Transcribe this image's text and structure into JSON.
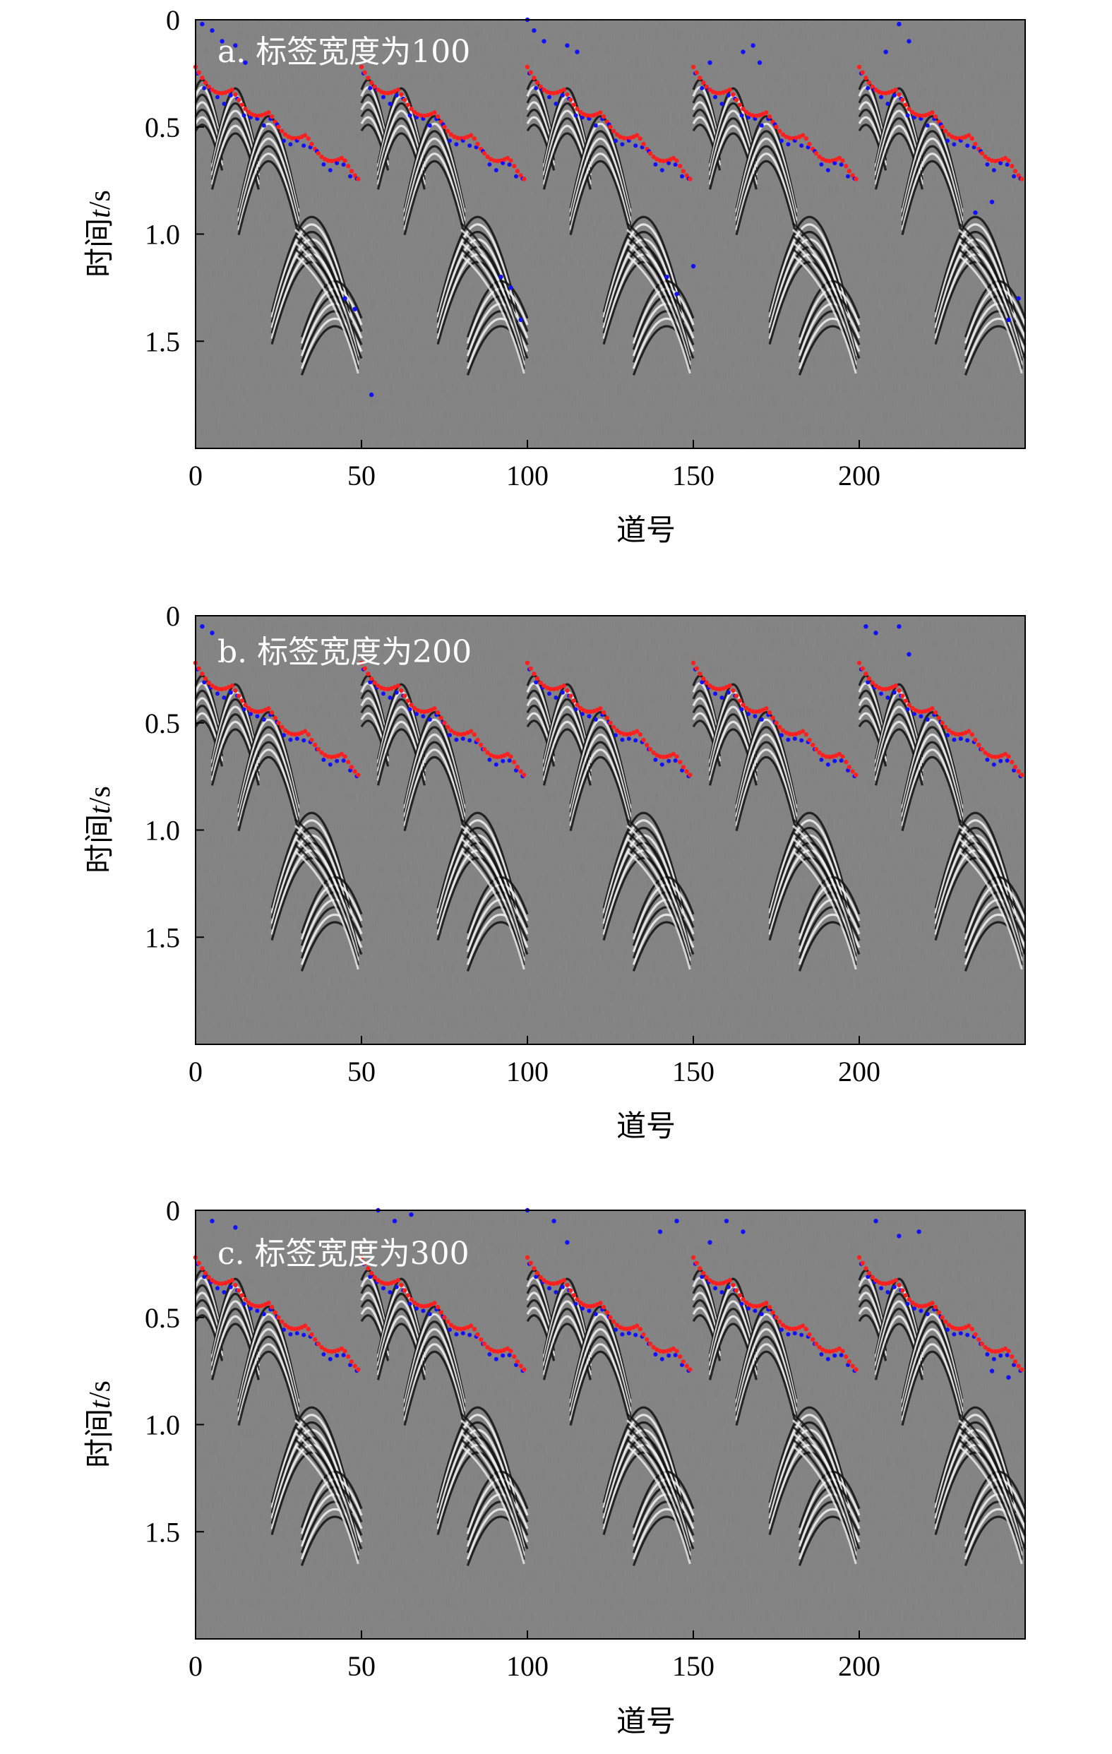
{
  "colors": {
    "background_gray": "#808080",
    "auto_picks": "#ff2020",
    "model_picks": "#1010ff"
  },
  "chart_data": [
    {
      "type": "scatter",
      "label": "a. 标签宽度为100",
      "xlabel": "道号",
      "ylabel_pre": "时间",
      "ylabel_var": "t",
      "ylabel_post": "/s",
      "xlim": [
        0,
        250
      ],
      "ylim": [
        2.0,
        0
      ],
      "xticks": [
        0,
        50,
        100,
        150,
        200
      ],
      "yticks": [
        0,
        0.5,
        1.0,
        1.5
      ],
      "ytick_labels": [
        "0",
        "0.5",
        "1.0",
        "1.5"
      ],
      "y_inverted": true,
      "series": [
        {
          "key": "red",
          "x_ranges": [
            [
              0,
              50
            ],
            [
              50,
              100
            ],
            [
              100,
              150
            ],
            [
              150,
              200
            ],
            [
              200,
              250
            ]
          ],
          "y_start": 0.25,
          "y_end": 0.75
        },
        {
          "key": "blue",
          "scatter_x": [
            2,
            5,
            8,
            12,
            15,
            45,
            48,
            53,
            92,
            95,
            98,
            100,
            102,
            105,
            112,
            115,
            142,
            145,
            150,
            155,
            165,
            168,
            170,
            208,
            212,
            215,
            235,
            240,
            245,
            248
          ],
          "scatter_y": [
            0.02,
            0.05,
            0.1,
            0.12,
            0.2,
            1.3,
            1.35,
            1.75,
            1.2,
            1.25,
            1.4,
            0.0,
            0.05,
            0.1,
            0.12,
            0.15,
            1.2,
            1.28,
            1.15,
            0.2,
            0.15,
            0.12,
            0.2,
            0.15,
            0.02,
            0.1,
            0.9,
            0.85,
            1.4,
            1.3
          ]
        }
      ]
    },
    {
      "type": "scatter",
      "label": "b. 标签宽度为200",
      "xlabel": "道号",
      "ylabel_pre": "时间",
      "ylabel_var": "t",
      "ylabel_post": "/s",
      "xlim": [
        0,
        250
      ],
      "ylim": [
        2.0,
        0
      ],
      "xticks": [
        0,
        50,
        100,
        150,
        200
      ],
      "yticks": [
        0,
        0.5,
        1.0,
        1.5
      ],
      "ytick_labels": [
        "0",
        "0.5",
        "1.0",
        "1.5"
      ],
      "y_inverted": true,
      "series": [
        {
          "key": "red",
          "x_ranges": [
            [
              0,
              50
            ],
            [
              50,
              100
            ],
            [
              100,
              150
            ],
            [
              150,
              200
            ],
            [
              200,
              250
            ]
          ],
          "y_start": 0.25,
          "y_end": 0.75
        },
        {
          "key": "blue",
          "scatter_x": [
            2,
            5,
            202,
            205,
            212,
            215
          ],
          "scatter_y": [
            0.05,
            0.08,
            0.05,
            0.08,
            0.05,
            0.18
          ]
        }
      ]
    },
    {
      "type": "scatter",
      "label": "c. 标签宽度为300",
      "xlabel": "道号",
      "ylabel_pre": "时间",
      "ylabel_var": "t",
      "ylabel_post": "/s",
      "xlim": [
        0,
        250
      ],
      "ylim": [
        2.0,
        0
      ],
      "xticks": [
        0,
        50,
        100,
        150,
        200
      ],
      "yticks": [
        0,
        0.5,
        1.0,
        1.5
      ],
      "ytick_labels": [
        "0",
        "0.5",
        "1.0",
        "1.5"
      ],
      "y_inverted": true,
      "series": [
        {
          "key": "red",
          "x_ranges": [
            [
              0,
              50
            ],
            [
              50,
              100
            ],
            [
              100,
              150
            ],
            [
              150,
              200
            ],
            [
              200,
              250
            ]
          ],
          "y_start": 0.25,
          "y_end": 0.75
        },
        {
          "key": "blue",
          "scatter_x": [
            5,
            12,
            55,
            60,
            65,
            100,
            108,
            112,
            140,
            145,
            155,
            160,
            165,
            205,
            212,
            218,
            240,
            245
          ],
          "scatter_y": [
            0.05,
            0.08,
            0.0,
            0.05,
            0.02,
            0.0,
            0.05,
            0.15,
            0.1,
            0.05,
            0.15,
            0.05,
            0.1,
            0.05,
            0.12,
            0.1,
            0.75,
            0.78
          ]
        }
      ]
    }
  ]
}
